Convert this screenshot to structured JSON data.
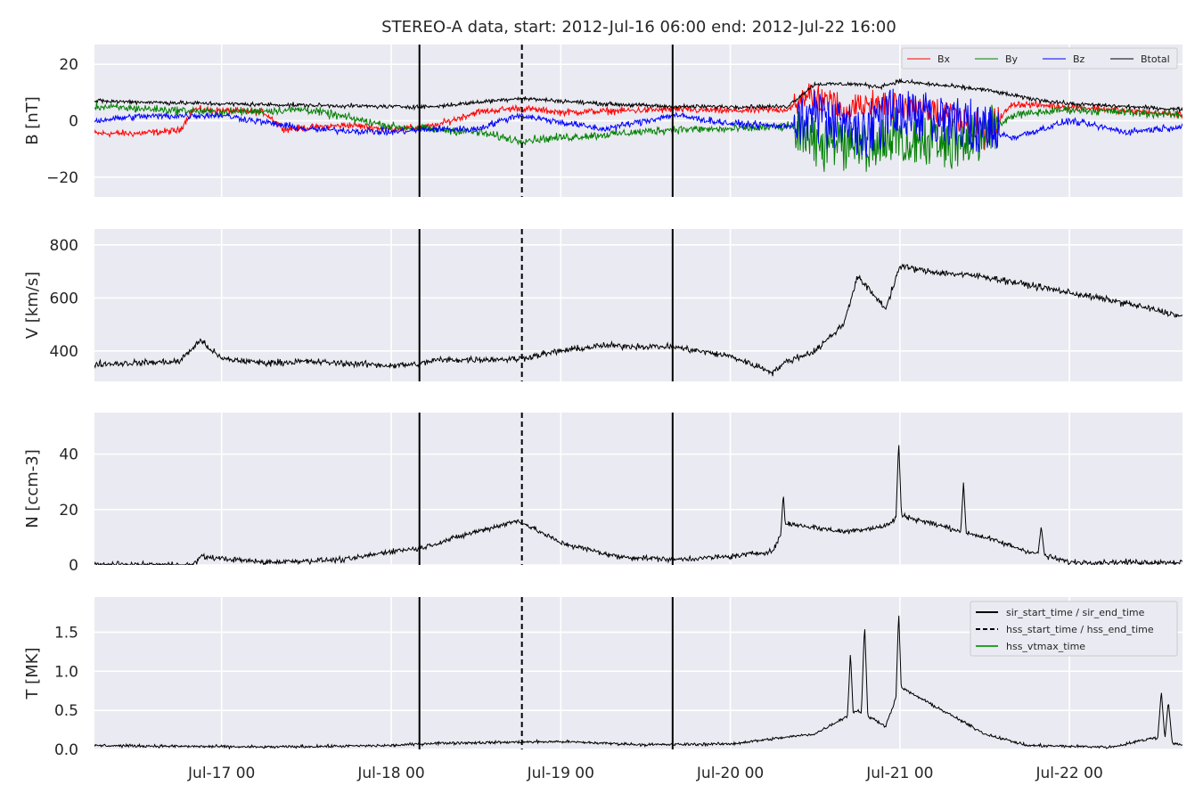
{
  "chart_data": {
    "type": "line",
    "title": "STEREO-A data, start: 2012-Jul-16 06:00  end: 2012-Jul-22 16:00",
    "x_range": [
      "2012-07-16 06:00",
      "2012-07-22 16:00"
    ],
    "x_ticks": [
      {
        "t": "2012-07-17 00:00",
        "label": "Jul-17 00"
      },
      {
        "t": "2012-07-18 00:00",
        "label": "Jul-18 00"
      },
      {
        "t": "2012-07-19 00:00",
        "label": "Jul-19 00"
      },
      {
        "t": "2012-07-20 00:00",
        "label": "Jul-20 00"
      },
      {
        "t": "2012-07-21 00:00",
        "label": "Jul-21 00"
      },
      {
        "t": "2012-07-22 00:00",
        "label": "Jul-22 00"
      }
    ],
    "grid": true,
    "event_markers": [
      {
        "name": "sir_start_time",
        "t": "2012-07-18 04:00",
        "style": "solid"
      },
      {
        "name": "hss_start_time",
        "t": "2012-07-18 18:30",
        "style": "dashed"
      },
      {
        "name": "sir_end_time",
        "t": "2012-07-19 15:50",
        "style": "solid"
      }
    ],
    "marker_legend": {
      "placement": "upper-right",
      "entries": [
        {
          "label": "sir_start_time / sir_end_time",
          "style": "solid",
          "color": "#000000"
        },
        {
          "label": "hss_start_time / hss_end_time",
          "style": "dashed",
          "color": "#000000"
        },
        {
          "label": "hss_vtmax_time",
          "style": "solid",
          "color": "#2ca02c"
        }
      ]
    },
    "panels": [
      {
        "id": "B",
        "ylabel": "B [nT]",
        "ylim": [
          -27,
          27
        ],
        "yticks": [
          -20,
          0,
          20
        ],
        "yticklabels": [
          "−20",
          "0",
          "20"
        ],
        "legend": {
          "placement": "top-right",
          "ncol": 4
        },
        "series": [
          {
            "name": "Bx",
            "color": "#ff0000",
            "noise": 1.0,
            "points": [
              [
                "2012-07-16 06:00",
                -4.5
              ],
              [
                "2012-07-16 12:00",
                -4.5
              ],
              [
                "2012-07-16 18:00",
                -3.5
              ],
              [
                "2012-07-16 20:00",
                4.0
              ],
              [
                "2012-07-17 06:00",
                3.0
              ],
              [
                "2012-07-17 09:00",
                -3.0
              ],
              [
                "2012-07-17 18:00",
                -1.5
              ],
              [
                "2012-07-18 00:00",
                -3.0
              ],
              [
                "2012-07-18 06:00",
                -2.0
              ],
              [
                "2012-07-18 12:00",
                3.0
              ],
              [
                "2012-07-18 18:00",
                4.5
              ],
              [
                "2012-07-19 00:00",
                3.0
              ],
              [
                "2012-07-19 08:00",
                3.5
              ],
              [
                "2012-07-19 16:00",
                4.0
              ],
              [
                "2012-07-20 00:00",
                3.5
              ],
              [
                "2012-07-20 08:00",
                4.0
              ],
              [
                "2012-07-20 12:00",
                9.0
              ],
              [
                "2012-07-20 16:00",
                4.0
              ],
              [
                "2012-07-20 21:00",
                6.0
              ],
              [
                "2012-07-21 00:00",
                5.0
              ],
              [
                "2012-07-21 08:00",
                2.0
              ],
              [
                "2012-07-21 12:00",
                -5.0
              ],
              [
                "2012-07-21 16:00",
                6.0
              ],
              [
                "2012-07-22 00:00",
                5.0
              ],
              [
                "2012-07-22 16:00",
                2.0
              ]
            ]
          },
          {
            "name": "By",
            "color": "#008000",
            "noise": 1.2,
            "points": [
              [
                "2012-07-16 06:00",
                5.0
              ],
              [
                "2012-07-17 00:00",
                3.0
              ],
              [
                "2012-07-17 12:00",
                4.0
              ],
              [
                "2012-07-18 00:00",
                -2.0
              ],
              [
                "2012-07-18 06:00",
                -3.0
              ],
              [
                "2012-07-18 12:00",
                -4.0
              ],
              [
                "2012-07-18 18:00",
                -7.0
              ],
              [
                "2012-07-19 06:00",
                -5.0
              ],
              [
                "2012-07-19 16:00",
                -3.0
              ],
              [
                "2012-07-20 00:00",
                -3.0
              ],
              [
                "2012-07-20 09:00",
                -2.0
              ],
              [
                "2012-07-20 12:00",
                -8.0
              ],
              [
                "2012-07-20 18:00",
                -10.0
              ],
              [
                "2012-07-21 00:00",
                -5.0
              ],
              [
                "2012-07-21 06:00",
                -8.0
              ],
              [
                "2012-07-21 12:00",
                -6.0
              ],
              [
                "2012-07-21 16:00",
                2.0
              ],
              [
                "2012-07-22 00:00",
                4.0
              ],
              [
                "2012-07-22 16:00",
                2.0
              ]
            ]
          },
          {
            "name": "Bz",
            "color": "#0000ff",
            "noise": 1.0,
            "points": [
              [
                "2012-07-16 06:00",
                0.0
              ],
              [
                "2012-07-16 12:00",
                1.5
              ],
              [
                "2012-07-17 00:00",
                2.0
              ],
              [
                "2012-07-17 12:00",
                -3.0
              ],
              [
                "2012-07-18 00:00",
                -4.0
              ],
              [
                "2012-07-18 06:00",
                -3.0
              ],
              [
                "2012-07-18 12:00",
                -3.0
              ],
              [
                "2012-07-18 18:00",
                2.0
              ],
              [
                "2012-07-19 06:00",
                -3.0
              ],
              [
                "2012-07-19 16:00",
                2.0
              ],
              [
                "2012-07-20 00:00",
                -1.0
              ],
              [
                "2012-07-20 08:00",
                -2.0
              ],
              [
                "2012-07-20 12:00",
                2.0
              ],
              [
                "2012-07-20 18:00",
                -5.0
              ],
              [
                "2012-07-21 00:00",
                3.0
              ],
              [
                "2012-07-21 08:00",
                0.0
              ],
              [
                "2012-07-21 16:00",
                -6.0
              ],
              [
                "2012-07-22 00:00",
                0.0
              ],
              [
                "2012-07-22 08:00",
                -4.0
              ],
              [
                "2012-07-22 16:00",
                -2.0
              ]
            ]
          },
          {
            "name": "Btotal",
            "color": "#000000",
            "noise": 0.6,
            "points": [
              [
                "2012-07-16 06:00",
                7.0
              ],
              [
                "2012-07-17 00:00",
                6.0
              ],
              [
                "2012-07-17 12:00",
                5.5
              ],
              [
                "2012-07-18 00:00",
                5.0
              ],
              [
                "2012-07-18 06:00",
                5.0
              ],
              [
                "2012-07-18 18:00",
                8.0
              ],
              [
                "2012-07-19 06:00",
                6.0
              ],
              [
                "2012-07-19 16:00",
                5.0
              ],
              [
                "2012-07-20 00:00",
                5.0
              ],
              [
                "2012-07-20 08:00",
                5.0
              ],
              [
                "2012-07-20 12:00",
                13.0
              ],
              [
                "2012-07-20 18:00",
                13.0
              ],
              [
                "2012-07-20 21:00",
                12.0
              ],
              [
                "2012-07-21 00:00",
                14.0
              ],
              [
                "2012-07-21 12:00",
                11.0
              ],
              [
                "2012-07-21 18:00",
                8.0
              ],
              [
                "2012-07-22 00:00",
                6.0
              ],
              [
                "2012-07-22 16:00",
                4.0
              ]
            ]
          }
        ],
        "burst": {
          "start": "2012-07-20 09:00",
          "end": "2012-07-21 14:00",
          "amplitude": 12
        }
      },
      {
        "id": "V",
        "ylabel": "V [km/s]",
        "ylim": [
          285,
          860
        ],
        "yticks": [
          400,
          600,
          800
        ],
        "yticklabels": [
          "400",
          "600",
          "800"
        ],
        "series": [
          {
            "name": "V",
            "color": "#000000",
            "noise": 10,
            "points": [
              [
                "2012-07-16 06:00",
                350
              ],
              [
                "2012-07-16 12:00",
                355
              ],
              [
                "2012-07-16 18:00",
                360
              ],
              [
                "2012-07-16 21:00",
                440
              ],
              [
                "2012-07-17 00:00",
                370
              ],
              [
                "2012-07-17 06:00",
                355
              ],
              [
                "2012-07-17 12:00",
                360
              ],
              [
                "2012-07-18 00:00",
                345
              ],
              [
                "2012-07-18 04:00",
                350
              ],
              [
                "2012-07-18 06:00",
                365
              ],
              [
                "2012-07-18 18:00",
                370
              ],
              [
                "2012-07-19 00:00",
                400
              ],
              [
                "2012-07-19 06:00",
                420
              ],
              [
                "2012-07-19 16:00",
                415
              ],
              [
                "2012-07-20 00:00",
                380
              ],
              [
                "2012-07-20 06:00",
                320
              ],
              [
                "2012-07-20 08:00",
                360
              ],
              [
                "2012-07-20 12:00",
                400
              ],
              [
                "2012-07-20 16:00",
                500
              ],
              [
                "2012-07-20 18:00",
                680
              ],
              [
                "2012-07-20 22:00",
                560
              ],
              [
                "2012-07-21 00:00",
                720
              ],
              [
                "2012-07-21 04:00",
                700
              ],
              [
                "2012-07-21 12:00",
                680
              ],
              [
                "2012-07-22 00:00",
                620
              ],
              [
                "2012-07-22 08:00",
                580
              ],
              [
                "2012-07-22 16:00",
                530
              ]
            ]
          }
        ]
      },
      {
        "id": "N",
        "ylabel": "N [ccm-3]",
        "ylim": [
          0,
          55
        ],
        "yticks": [
          0,
          20,
          40
        ],
        "yticklabels": [
          "0",
          "20",
          "40"
        ],
        "series": [
          {
            "name": "N",
            "color": "#000000",
            "noise": 0.8,
            "points": [
              [
                "2012-07-16 06:00",
                0.1
              ],
              [
                "2012-07-16 20:00",
                0.1
              ],
              [
                "2012-07-16 21:00",
                3.0
              ],
              [
                "2012-07-17 06:00",
                1.0
              ],
              [
                "2012-07-17 18:00",
                2.0
              ],
              [
                "2012-07-18 00:00",
                5.0
              ],
              [
                "2012-07-18 04:00",
                6.0
              ],
              [
                "2012-07-18 12:00",
                12.0
              ],
              [
                "2012-07-18 18:00",
                16.0
              ],
              [
                "2012-07-19 00:00",
                8.0
              ],
              [
                "2012-07-19 08:00",
                3.0
              ],
              [
                "2012-07-19 16:00",
                2.0
              ],
              [
                "2012-07-20 00:00",
                3.0
              ],
              [
                "2012-07-20 06:00",
                5.0
              ],
              [
                "2012-07-20 08:00",
                15.0
              ],
              [
                "2012-07-20 16:00",
                12.0
              ],
              [
                "2012-07-20 22:00",
                14.0
              ],
              [
                "2012-07-21 00:00",
                18.0
              ],
              [
                "2012-07-21 12:00",
                10.0
              ],
              [
                "2012-07-21 18:00",
                5.0
              ],
              [
                "2012-07-22 00:00",
                1.0
              ],
              [
                "2012-07-22 16:00",
                1.0
              ]
            ]
          }
        ],
        "spikes": [
          [
            "2012-07-20 07:30",
            26
          ],
          [
            "2012-07-20 23:50",
            45
          ],
          [
            "2012-07-21 09:00",
            30
          ],
          [
            "2012-07-21 20:00",
            14
          ]
        ]
      },
      {
        "id": "T",
        "ylabel": "T [MK]",
        "ylim": [
          0,
          1.95
        ],
        "yticks": [
          0.0,
          0.5,
          1.0,
          1.5
        ],
        "yticklabels": [
          "0.0",
          "0.5",
          "1.0",
          "1.5"
        ],
        "series": [
          {
            "name": "T",
            "color": "#000000",
            "noise": 0.015,
            "points": [
              [
                "2012-07-16 06:00",
                0.05
              ],
              [
                "2012-07-17 06:00",
                0.03
              ],
              [
                "2012-07-18 00:00",
                0.05
              ],
              [
                "2012-07-18 06:00",
                0.08
              ],
              [
                "2012-07-19 00:00",
                0.1
              ],
              [
                "2012-07-19 12:00",
                0.06
              ],
              [
                "2012-07-20 00:00",
                0.07
              ],
              [
                "2012-07-20 12:00",
                0.2
              ],
              [
                "2012-07-20 18:00",
                0.5
              ],
              [
                "2012-07-20 22:00",
                0.3
              ],
              [
                "2012-07-21 00:00",
                0.8
              ],
              [
                "2012-07-21 06:00",
                0.5
              ],
              [
                "2012-07-21 12:00",
                0.2
              ],
              [
                "2012-07-21 18:00",
                0.05
              ],
              [
                "2012-07-22 06:00",
                0.03
              ],
              [
                "2012-07-22 12:00",
                0.15
              ],
              [
                "2012-07-22 16:00",
                0.05
              ]
            ]
          }
        ],
        "spikes": [
          [
            "2012-07-20 17:00",
            1.25
          ],
          [
            "2012-07-20 19:00",
            1.62
          ],
          [
            "2012-07-20 23:50",
            1.78
          ],
          [
            "2012-07-22 13:00",
            0.75
          ],
          [
            "2012-07-22 14:00",
            0.62
          ]
        ]
      }
    ]
  }
}
